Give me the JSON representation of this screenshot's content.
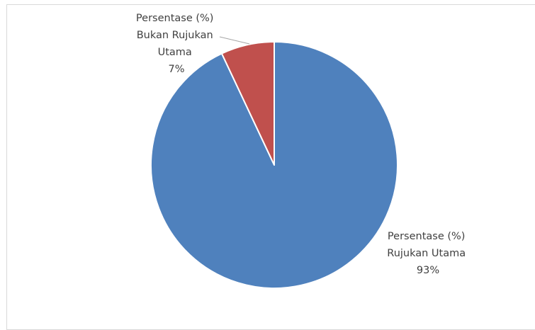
{
  "chart_data": {
    "type": "pie",
    "title": "",
    "categories": [
      "Persentase (%) Rujukan Utama",
      "Persentase (%) Bukan Rujukan Utama"
    ],
    "values": [
      93,
      7
    ],
    "colors": [
      "#4f81bd",
      "#c0504d"
    ],
    "labels": [
      {
        "lines": [
          "Persentase (%)",
          "Rujukan Utama",
          "93%"
        ]
      },
      {
        "lines": [
          "Persentase (%)",
          "Bukan Rujukan",
          "Utama",
          "7%"
        ]
      }
    ],
    "legend": "none",
    "start_angle_deg": 0,
    "direction": "clockwise"
  }
}
